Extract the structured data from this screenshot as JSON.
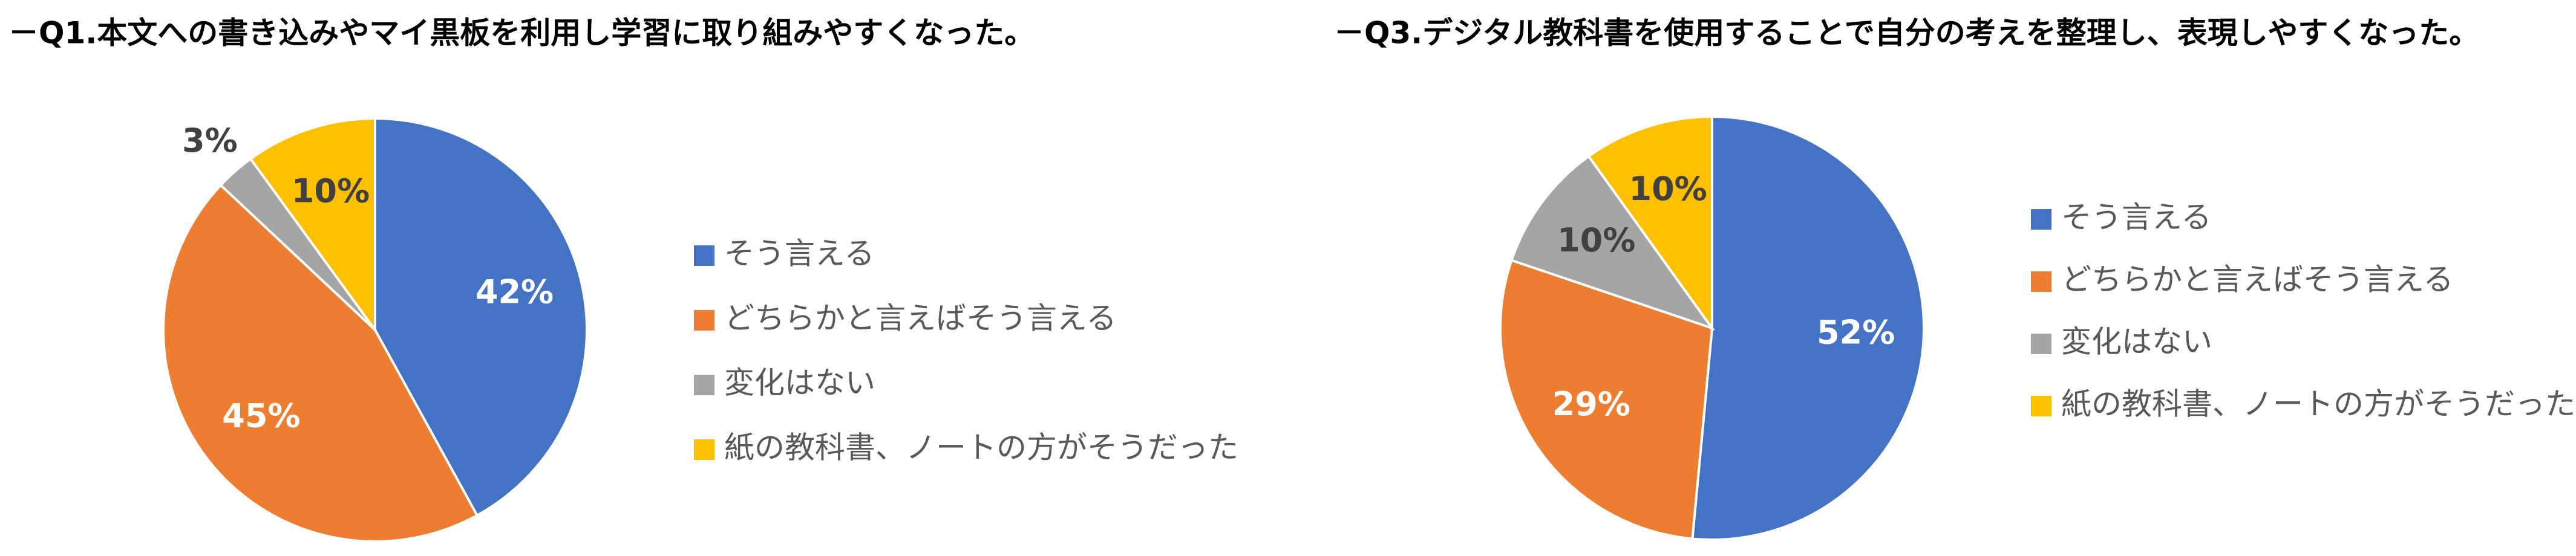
{
  "chart_data": [
    {
      "type": "pie",
      "title": "－Q1.本文への書き込みやマイ黒板を利用し学習に取り組みやすくなった。",
      "categories": [
        "そう言える",
        "どちらかと言えばそう言える",
        "変化はない",
        "紙の教科書、ノートの方がそうだった"
      ],
      "values": [
        42,
        45,
        3,
        10
      ],
      "value_labels": [
        "42%",
        "45%",
        "3%",
        "10%"
      ],
      "colors": [
        "#4472c4",
        "#ed7d31",
        "#a5a5a5",
        "#ffc000"
      ],
      "legend": "right"
    },
    {
      "type": "pie",
      "title": "－Q3.デジタル教科書を使用することで自分の考えを整理し、表現しやすくなった。",
      "categories": [
        "そう言える",
        "どちらかと言えばそう言える",
        "変化はない",
        "紙の教科書、ノートの方がそうだった"
      ],
      "values": [
        52,
        29,
        10,
        10
      ],
      "value_labels": [
        "52%",
        "29%",
        "10%",
        "10%"
      ],
      "colors": [
        "#4472c4",
        "#ed7d31",
        "#a5a5a5",
        "#ffc000"
      ],
      "legend": "right"
    }
  ]
}
